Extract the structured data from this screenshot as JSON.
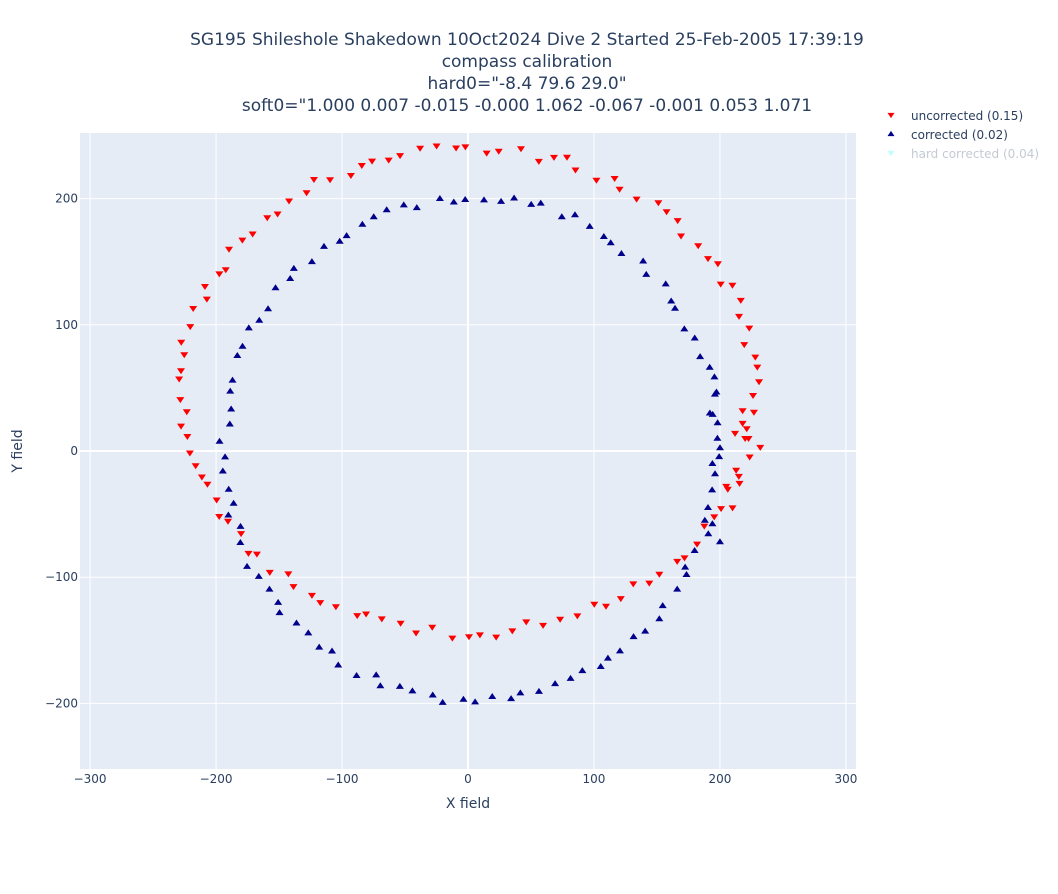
{
  "chart_data": {
    "type": "scatter",
    "title_lines": [
      "SG195 Shileshole Shakedown 10Oct2024 Dive 2 Started 25-Feb-2005 17:39:19",
      "compass calibration",
      "hard0=\"-8.4 79.6 29.0\"",
      "soft0=\"1.000 0.007 -0.015 -0.000 1.062 -0.067 -0.001 0.053 1.071"
    ],
    "xlabel": "X field",
    "ylabel": "Y field",
    "xlim": [
      -308,
      308
    ],
    "ylim": [
      -252,
      252
    ],
    "xticks": [
      -300,
      -200,
      -100,
      0,
      100,
      200,
      300
    ],
    "yticks": [
      -200,
      -100,
      0,
      100,
      200
    ],
    "xtick_labels": [
      "−300",
      "−200",
      "−100",
      "0",
      "100",
      "200",
      "300"
    ],
    "ytick_labels": [
      "−200",
      "−100",
      "0",
      "100",
      "200"
    ],
    "grid": true,
    "legend_position": "top-right, outside plot",
    "background_color": "#e5ecf6",
    "series": [
      {
        "name": "uncorrected (0.15)",
        "color": "#ff0000",
        "marker": "triangle-down",
        "visible": true,
        "ellipse": {
          "cx": 0,
          "cy": 48,
          "rx": 228,
          "ry": 192,
          "n": 110,
          "jitter": 5
        },
        "extra_points": [
          [
            232,
            3
          ],
          [
            218,
            32
          ],
          [
            220,
            10
          ],
          [
            215,
            -20
          ],
          [
            210,
            -45
          ],
          [
            205,
            -28
          ],
          [
            218,
            22
          ],
          [
            212,
            14
          ]
        ]
      },
      {
        "name": "corrected (0.02)",
        "color": "#00008b",
        "marker": "triangle-up",
        "visible": true,
        "ellipse": {
          "cx": 3,
          "cy": 2,
          "rx": 197,
          "ry": 199,
          "n": 100,
          "jitter": 4
        },
        "extra_points": [
          [
            200,
            -72
          ],
          [
            196,
            45
          ],
          [
            198,
            10
          ],
          [
            194,
            -10
          ],
          [
            188,
            -55
          ],
          [
            192,
            30
          ]
        ]
      },
      {
        "name": "hard corrected (0.04)",
        "color": "#7fffff",
        "marker": "triangle-down",
        "visible": false,
        "ellipse": {
          "cx": 0,
          "cy": 0,
          "rx": 210,
          "ry": 200,
          "n": 0,
          "jitter": 4
        },
        "extra_points": []
      }
    ]
  }
}
